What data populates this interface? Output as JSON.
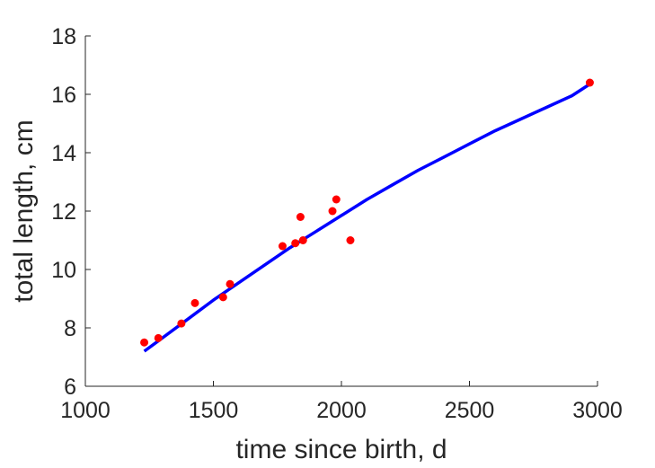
{
  "chart_data": {
    "type": "scatter",
    "xlabel": "time since birth, d",
    "ylabel": "total length, cm",
    "xlim": [
      1000,
      3000
    ],
    "ylim": [
      6,
      18
    ],
    "xticks": [
      1000,
      1500,
      2000,
      2500,
      3000
    ],
    "yticks": [
      6,
      8,
      10,
      12,
      14,
      16,
      18
    ],
    "grid": false,
    "series": [
      {
        "kind": "points",
        "color": "#ff0000",
        "points": [
          [
            1230,
            7.5
          ],
          [
            1285,
            7.65
          ],
          [
            1375,
            8.15
          ],
          [
            1428,
            8.85
          ],
          [
            1538,
            9.05
          ],
          [
            1565,
            9.5
          ],
          [
            1770,
            10.8
          ],
          [
            1820,
            10.9
          ],
          [
            1840,
            11.8
          ],
          [
            1850,
            11.0
          ],
          [
            1965,
            12.0
          ],
          [
            1980,
            12.4
          ],
          [
            2035,
            11.0
          ],
          [
            2970,
            16.4
          ]
        ]
      },
      {
        "kind": "fit-curve",
        "color": "#0000ff",
        "points": [
          [
            1230,
            7.2
          ],
          [
            1300,
            7.65
          ],
          [
            1400,
            8.3
          ],
          [
            1500,
            8.95
          ],
          [
            1600,
            9.55
          ],
          [
            1700,
            10.15
          ],
          [
            1800,
            10.75
          ],
          [
            1900,
            11.3
          ],
          [
            2000,
            11.85
          ],
          [
            2100,
            12.4
          ],
          [
            2200,
            12.9
          ],
          [
            2300,
            13.4
          ],
          [
            2400,
            13.85
          ],
          [
            2500,
            14.3
          ],
          [
            2600,
            14.75
          ],
          [
            2700,
            15.15
          ],
          [
            2800,
            15.55
          ],
          [
            2900,
            15.95
          ],
          [
            2970,
            16.35
          ]
        ]
      }
    ]
  }
}
